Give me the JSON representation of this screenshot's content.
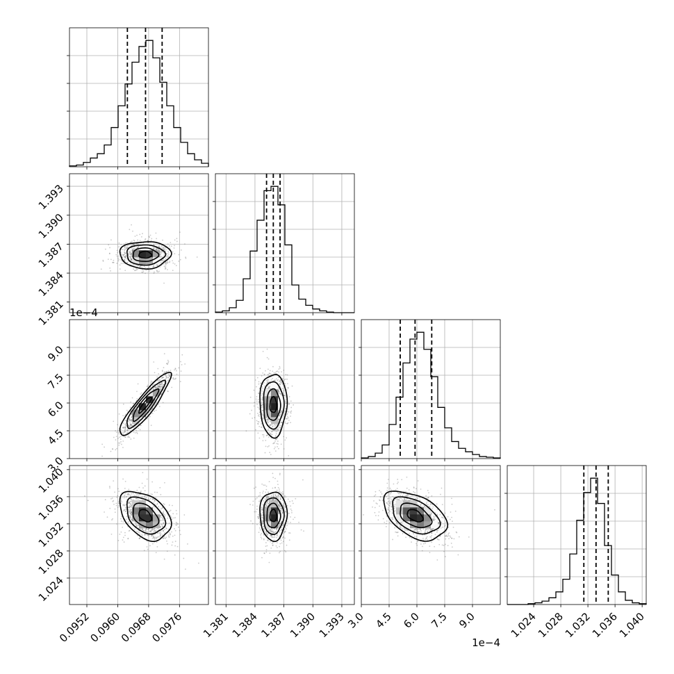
{
  "chart_data": {
    "type": "corner",
    "title": "",
    "grid": true,
    "colors": {
      "line": "#000000",
      "grid": "#b0b0b0",
      "scatter": "#666666"
    },
    "parameters": [
      {
        "name": "",
        "range": [
          0.09475,
          0.09835
        ],
        "ticks": [
          0.0952,
          0.096,
          0.0968,
          0.0976
        ],
        "tick_labels": [
          "0.0952",
          "0.0960",
          "0.0968",
          "0.0976"
        ],
        "offset_text": "",
        "quantiles": [
          0.09625,
          0.09672,
          0.09715
        ],
        "peak": 0.09671,
        "sigma": 0.00033
      },
      {
        "name": "",
        "range": [
          1.3799,
          1.3943
        ],
        "ticks": [
          1.381,
          1.384,
          1.387,
          1.39,
          1.393
        ],
        "tick_labels": [
          "1.381",
          "1.384",
          "1.387",
          "1.390",
          "1.393"
        ],
        "offset_text": "",
        "quantiles": [
          1.3852,
          1.3859,
          1.3866
        ],
        "peak": 1.3859,
        "sigma": 0.0007
      },
      {
        "name": "",
        "range": [
          3.0,
          10.5
        ],
        "ticks": [
          3.0,
          4.5,
          6.0,
          7.5,
          9.0
        ],
        "tick_labels": [
          "3.0",
          "4.5",
          "6.0",
          "7.5",
          "9.0"
        ],
        "offset_text": "1e−4",
        "quantiles": [
          5.1,
          5.9,
          6.8
        ],
        "peak": 5.9,
        "sigma": 0.85
      },
      {
        "name": "",
        "range": [
          1.0201,
          1.0406
        ],
        "ticks": [
          1.024,
          1.028,
          1.032,
          1.036,
          1.04
        ],
        "tick_labels": [
          "1.024",
          "1.028",
          "1.032",
          "1.036",
          "1.040"
        ],
        "offset_text": "",
        "quantiles": [
          1.0314,
          1.0332,
          1.035
        ],
        "peak": 1.0332,
        "sigma": 0.0018
      }
    ],
    "histograms": [
      {
        "param": 0,
        "bins": [
          0.09475,
          0.09835
        ],
        "counts": [
          1,
          2,
          5,
          10,
          15,
          25,
          45,
          70,
          95,
          120,
          138,
          145,
          125,
          97,
          70,
          45,
          28,
          15,
          8,
          4
        ]
      },
      {
        "param": 1,
        "bins": [
          1.3799,
          1.3943
        ],
        "counts": [
          1,
          3,
          8,
          20,
          55,
          100,
          150,
          198,
          205,
          175,
          110,
          45,
          22,
          12,
          6,
          3,
          1,
          0,
          0,
          0
        ]
      },
      {
        "param": 2,
        "bins": [
          3.0,
          10.5
        ],
        "counts": [
          1,
          3,
          8,
          20,
          50,
          90,
          140,
          175,
          185,
          160,
          120,
          75,
          45,
          25,
          15,
          10,
          6,
          3,
          2,
          1
        ]
      },
      {
        "param": 3,
        "bins": [
          1.0201,
          1.0406
        ],
        "counts": [
          0,
          0,
          0,
          1,
          2,
          4,
          8,
          15,
          30,
          60,
          100,
          133,
          150,
          120,
          70,
          35,
          15,
          5,
          2,
          1
        ]
      }
    ],
    "pairs": [
      {
        "x": 0,
        "y": 1,
        "rho": 0.0
      },
      {
        "x": 0,
        "y": 2,
        "rho": 0.9
      },
      {
        "x": 1,
        "y": 2,
        "rho": 0.0
      },
      {
        "x": 0,
        "y": 3,
        "rho": -0.4
      },
      {
        "x": 1,
        "y": 3,
        "rho": 0.0
      },
      {
        "x": 2,
        "y": 3,
        "rho": -0.45
      }
    ]
  }
}
